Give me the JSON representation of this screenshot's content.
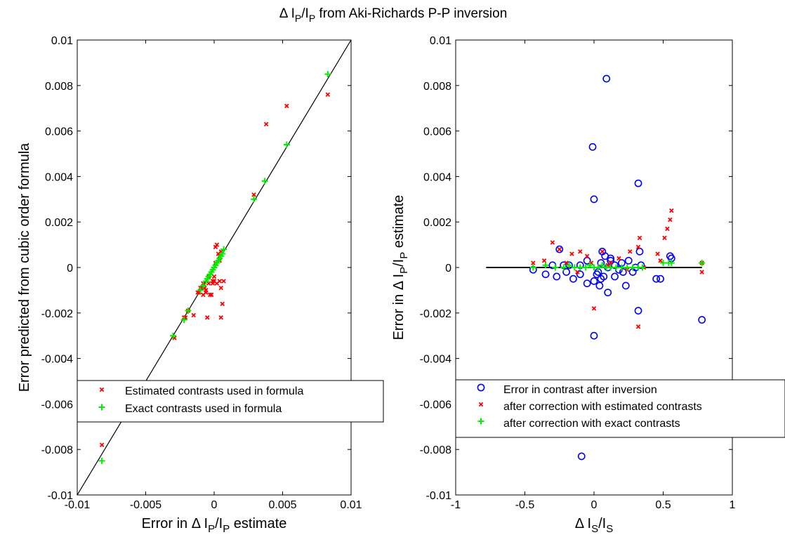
{
  "figure": {
    "title": {
      "pre": "Δ I",
      "sub1": "P",
      "mid": "/I",
      "sub2": "P",
      "post": " from Aki-Richards P-P inversion"
    }
  },
  "chart_data": [
    {
      "type": "scatter",
      "xlim": [
        -0.01,
        0.01
      ],
      "ylim": [
        -0.01,
        0.01
      ],
      "xticks": [
        "-0.01",
        "-0.005",
        "0",
        "0.005",
        "0.01"
      ],
      "yticks": [
        "-0.01",
        "-0.008",
        "-0.006",
        "-0.004",
        "-0.002",
        "0",
        "0.002",
        "0.004",
        "0.006",
        "0.008",
        "0.01"
      ],
      "xlabel": {
        "pre": "Error in Δ I",
        "sub1": "P",
        "mid": "/I",
        "sub2": "P",
        "post": " estimate"
      },
      "ylabel": "Error predicted from cubic order formula",
      "grid": false,
      "legend_position": "lower-right",
      "reference_line": {
        "x": [
          -0.01,
          0.01
        ],
        "y": [
          -0.01,
          0.01
        ],
        "color": "#000000"
      },
      "series": [
        {
          "name": "Estimated contrasts used in formula",
          "marker": "x",
          "color": "#ff0000",
          "x": [
            0.0083,
            0.0053,
            0.0038,
            0.0029,
            0.0007,
            0.0006,
            0.0005,
            0.0004,
            0.0003,
            0.0002,
            0.0001,
            0.0,
            -0.0001,
            -0.0002,
            -0.0003,
            -0.0004,
            -0.0005,
            -0.0006,
            -0.0008,
            -0.0009,
            -0.001,
            -0.0011,
            -0.0012,
            -0.0015,
            -0.0019,
            -0.0021,
            -0.0022,
            -0.0029,
            -0.0082,
            0.0005,
            0.0005,
            0.0004,
            0.0002,
            -0.0001,
            0.0,
            0.0004,
            0.0001,
            -0.0004,
            -0.0006,
            -0.0008,
            -0.0007
          ],
          "y": [
            0.0076,
            0.0071,
            0.0063,
            0.0032,
            -0.0006,
            -0.0016,
            -0.0022,
            0.0005,
            0.0006,
            0.001,
            0.0009,
            -0.0006,
            -0.0006,
            -0.0012,
            -0.0012,
            -0.0007,
            -0.0022,
            -0.001,
            -0.0007,
            -0.0009,
            -0.0009,
            -0.0011,
            -0.0011,
            -0.0021,
            -0.0019,
            -0.0022,
            -0.0022,
            -0.0031,
            -0.0078,
            0.0007,
            -0.0009,
            -0.0006,
            -0.0007,
            -0.0007,
            -0.0004,
            0.0003,
            0.0002,
            -0.0004,
            -0.0011,
            -0.0012,
            -0.0009
          ]
        },
        {
          "name": "Exact contrasts used in formula",
          "marker": "+",
          "color": "#00ee00",
          "x": [
            0.0083,
            0.0053,
            0.0037,
            0.0029,
            0.0007,
            0.0006,
            0.0005,
            0.0004,
            0.0003,
            0.0002,
            0.0001,
            0.0,
            -0.0001,
            -0.0002,
            -0.0003,
            -0.0004,
            -0.0005,
            -0.0006,
            -0.0008,
            -0.001,
            -0.0019,
            -0.0022,
            -0.003,
            -0.0082
          ],
          "y": [
            0.0085,
            0.0054,
            0.0038,
            0.003,
            0.0008,
            0.0006,
            0.0005,
            0.0004,
            0.0003,
            0.0002,
            0.0001,
            0.0,
            -0.0001,
            -0.0002,
            -0.0003,
            -0.0004,
            -0.0005,
            -0.0006,
            -0.0008,
            -0.001,
            -0.0019,
            -0.0023,
            -0.003,
            -0.0085
          ]
        }
      ]
    },
    {
      "type": "scatter",
      "xlim": [
        -1,
        1
      ],
      "ylim": [
        -0.01,
        0.01
      ],
      "xticks": [
        "-1",
        "-0.5",
        "0",
        "0.5",
        "1"
      ],
      "yticks": [
        "-0.01",
        "-0.008",
        "-0.006",
        "-0.004",
        "-0.002",
        "0",
        "0.002",
        "0.004",
        "0.006",
        "0.008",
        "0.01"
      ],
      "xlabel": {
        "pre": "Δ I",
        "sub1": "S",
        "mid": "/I",
        "sub2": "S",
        "post": ""
      },
      "ylabel": {
        "pre": "Error in Δ I",
        "sub1": "P",
        "mid": "/I",
        "sub2": "P",
        "post": " estimate"
      },
      "grid": false,
      "legend_position": "lower-right",
      "reference_line": {
        "x": [
          -0.78,
          0.78
        ],
        "y": [
          0,
          0
        ],
        "color": "#000000"
      },
      "series": [
        {
          "name": "Error in contrast after inversion",
          "marker": "o",
          "color": "#0000ff",
          "x": [
            0.09,
            -0.01,
            0.32,
            0.0,
            -0.44,
            -0.3,
            -0.25,
            -0.2,
            -0.15,
            -0.1,
            -0.05,
            0.0,
            0.02,
            0.05,
            0.06,
            0.08,
            0.1,
            0.12,
            0.15,
            0.18,
            0.2,
            0.23,
            0.25,
            0.28,
            0.3,
            0.33,
            0.34,
            0.45,
            0.48,
            0.55,
            0.56,
            0.32,
            0.0,
            0.78,
            -0.09,
            -0.35,
            -0.22,
            -0.1,
            0.04,
            0.07,
            -0.05,
            0.1,
            0.15,
            0.21,
            -0.27,
            -0.18,
            0.03,
            0.05,
            0.12
          ],
          "y": [
            0.0083,
            0.0053,
            0.0037,
            0.003,
            -0.0001,
            0.0001,
            0.0008,
            -0.0002,
            -0.0005,
            0.0001,
            -0.0007,
            -0.0006,
            -0.0003,
            -0.0005,
            0.0007,
            0.0005,
            -0.0011,
            0.0004,
            0.0001,
            -0.0001,
            0.0002,
            -0.0008,
            0.0003,
            -0.0002,
            0.0,
            0.0007,
            0.0001,
            -0.0005,
            -0.0005,
            0.0005,
            0.0004,
            -0.0019,
            -0.003,
            -0.0023,
            -0.0083,
            -0.0003,
            0.0001,
            -0.0003,
            -0.0008,
            -0.0004,
            0.0003,
            0.0,
            -0.0004,
            -0.0002,
            -0.0004,
            0.0001,
            -0.0002,
            0.0002,
            0.0003
          ]
        },
        {
          "name": "after correction with estimated contrasts",
          "marker": "x",
          "color": "#ff0000",
          "x": [
            0.56,
            0.55,
            0.53,
            0.51,
            0.46,
            0.36,
            0.33,
            0.32,
            0.32,
            0.26,
            0.18,
            0.12,
            0.06,
            0.0,
            -0.02,
            -0.05,
            -0.1,
            -0.16,
            -0.2,
            -0.25,
            -0.3,
            -0.36,
            -0.44,
            0.78,
            0.78,
            0.48,
            0.24,
            0.1,
            -0.12
          ],
          "y": [
            0.0025,
            0.0021,
            0.0017,
            0.0013,
            0.0006,
            0.0,
            0.0013,
            0.0009,
            -0.0026,
            0.0007,
            0.0004,
            0.0002,
            0.0007,
            -0.0018,
            0.0002,
            0.0005,
            0.0007,
            0.0006,
            0.0002,
            0.0008,
            0.0011,
            0.0003,
            0.0002,
            0.0002,
            -0.0002,
            0.0003,
            -0.0001,
            0.0001,
            -0.0002
          ]
        },
        {
          "name": "after correction with exact contrasts",
          "marker": "+",
          "color": "#00ee00",
          "x": [
            -0.44,
            -0.35,
            -0.28,
            -0.22,
            -0.18,
            -0.14,
            -0.1,
            -0.06,
            -0.03,
            0.0,
            0.03,
            0.06,
            0.09,
            0.12,
            0.16,
            0.2,
            0.24,
            0.28,
            0.32,
            0.35,
            0.5,
            0.54,
            0.56,
            0.78
          ],
          "y": [
            0.0,
            0.0001,
            0.0,
            0.0,
            0.0001,
            0.0,
            0.0,
            0.0,
            0.0001,
            0.0,
            0.0,
            0.0001,
            0.0,
            0.0,
            0.0,
            0.0,
            0.0,
            0.0,
            0.0,
            0.0,
            0.0002,
            0.0002,
            0.0002,
            0.0002
          ]
        }
      ]
    }
  ]
}
